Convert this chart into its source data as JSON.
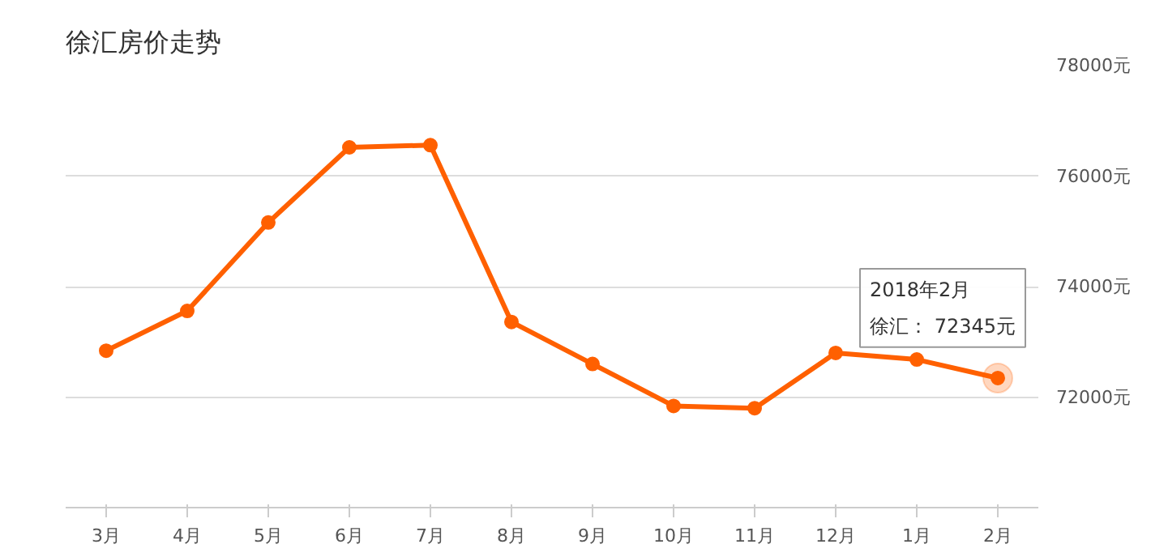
{
  "chart_data": {
    "type": "line",
    "title": "徐汇房价走势",
    "categories": [
      "3月",
      "4月",
      "5月",
      "6月",
      "7月",
      "8月",
      "9月",
      "10月",
      "11月",
      "12月",
      "1月",
      "2月"
    ],
    "series": [
      {
        "color": "#ff6000",
        "values": [
          72840,
          73560,
          75160,
          76520,
          76560,
          73360,
          72600,
          71840,
          71800,
          72800,
          72680,
          72345
        ]
      }
    ],
    "annotations": [
      "2018年2月",
      "徐汇： 72345元"
    ],
    "ylim": [
      70000,
      78000
    ],
    "yticks": [
      {
        "value": 72000,
        "label": "72000元"
      },
      {
        "value": 74000,
        "label": "74000元"
      },
      {
        "value": 76000,
        "label": "76000元"
      },
      {
        "value": 78000,
        "label": "78000元"
      }
    ],
    "grid": "y",
    "marker": "circle",
    "line_style": "solid"
  }
}
